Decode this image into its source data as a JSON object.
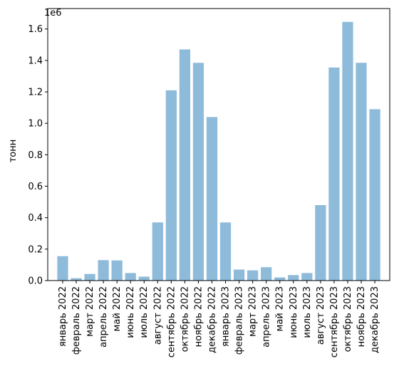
{
  "chart_data": {
    "type": "bar",
    "categories": [
      "январь 2022",
      "февраль 2022",
      "март 2022",
      "апрель 2022",
      "май 2022",
      "июнь 2022",
      "июль 2022",
      "август 2022",
      "сентябрь 2022",
      "октябрь 2022",
      "ноябрь 2022",
      "декабрь 2022",
      "январь 2023",
      "февраль 2023",
      "март 2023",
      "апрель 2023",
      "май 2023",
      "июнь 2023",
      "июль 2023",
      "август 2023",
      "сентябрь 2023",
      "октябрь 2023",
      "ноябрь 2023",
      "декабрь 2023"
    ],
    "values": [
      155000,
      15000,
      42000,
      130000,
      128000,
      48000,
      25000,
      370000,
      1210000,
      1470000,
      1385000,
      1040000,
      370000,
      70000,
      65000,
      85000,
      20000,
      35000,
      48000,
      480000,
      1355000,
      1645000,
      1385000,
      1090000
    ],
    "title": "",
    "xlabel": "",
    "ylabel": "тонн",
    "ylim": [
      0,
      1730000
    ],
    "yticks": [
      0,
      200000,
      400000,
      600000,
      800000,
      1000000,
      1200000,
      1400000,
      1600000
    ],
    "ytick_labels": [
      "0.0",
      "0.2",
      "0.4",
      "0.6",
      "0.8",
      "1.0",
      "1.2",
      "1.4",
      "1.6"
    ],
    "offset_label": "1e6",
    "grid": false,
    "bar_color": "#8fbbda"
  }
}
